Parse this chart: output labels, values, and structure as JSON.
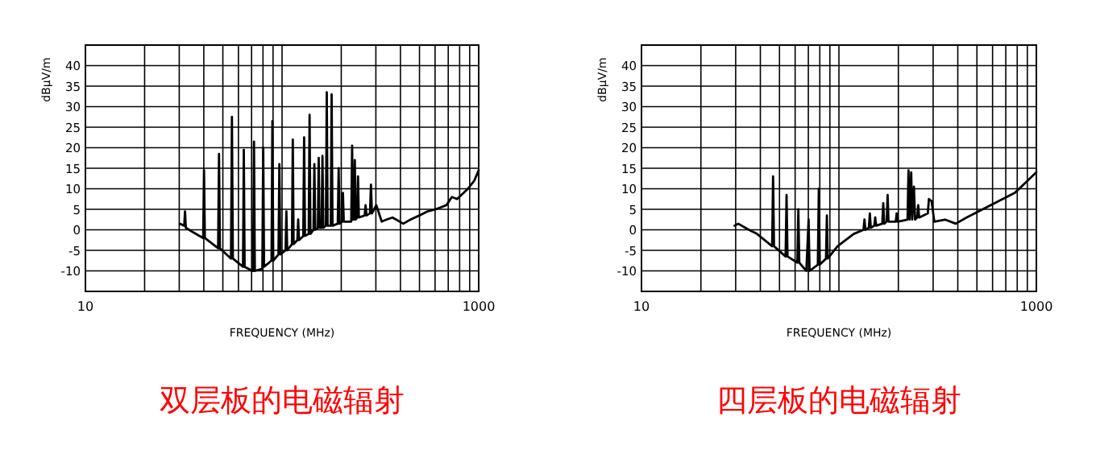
{
  "chart_data": [
    {
      "type": "line",
      "title": "双层板的电磁辐射",
      "xlabel": "FREQUENCY (MHz)",
      "ylabel": "dBμV/m",
      "color": "#000000",
      "log": "x",
      "grid": true,
      "xlim": [
        10,
        1000
      ],
      "ylim": [
        -15,
        45
      ],
      "xticks": [
        {
          "value": 10,
          "label": "10"
        },
        {
          "value": 20,
          "label": null
        },
        {
          "value": 30,
          "label": null
        },
        {
          "value": 40,
          "label": null
        },
        {
          "value": 50,
          "label": null
        },
        {
          "value": 60,
          "label": null
        },
        {
          "value": 70,
          "label": null
        },
        {
          "value": 80,
          "label": null
        },
        {
          "value": 90,
          "label": null
        },
        {
          "value": 100,
          "label": null
        },
        {
          "value": 200,
          "label": null
        },
        {
          "value": 300,
          "label": null
        },
        {
          "value": 400,
          "label": null
        },
        {
          "value": 500,
          "label": null
        },
        {
          "value": 600,
          "label": null
        },
        {
          "value": 700,
          "label": null
        },
        {
          "value": 800,
          "label": null
        },
        {
          "value": 900,
          "label": null
        },
        {
          "value": 1000,
          "label": "1000"
        }
      ],
      "yticks": [
        -10,
        -5,
        0,
        5,
        10,
        15,
        20,
        25,
        30,
        35,
        40
      ],
      "x": [
        30.2,
        31.8,
        32.1,
        32.4,
        35,
        39.7,
        40.1,
        40.5,
        47.3,
        47.8,
        48.3,
        55,
        55.6,
        56.2,
        63.3,
        63.9,
        64.5,
        70.7,
        71.3,
        72,
        72.7,
        79.4,
        80.2,
        81,
        88.4,
        89.3,
        90.2,
        95.9,
        96.9,
        97.9,
        104.2,
        105.2,
        106.2,
        112.3,
        113.4,
        114.5,
        119.6,
        120.8,
        122,
        128.2,
        129.5,
        130.8,
        136.6,
        138,
        139.4,
        144.5,
        146,
        147.5,
        152.1,
        153.6,
        155.1,
        158.9,
        160.5,
        162.1,
        167.1,
        168.8,
        170.5,
        176.9,
        178.7,
        180.5,
        192,
        194,
        196,
        202,
        204,
        206,
        220,
        224.8,
        227.1,
        229.4,
        232,
        234.4,
        236.8,
        241,
        243.4,
        245.8,
        263,
        265.9,
        268.8,
        280,
        283.2,
        286.4,
        301.6,
        321.3,
        340,
        364.5,
        413.5,
        450,
        499.7,
        550,
        603.8,
        684.8,
        730,
        776.9,
        881.4,
        950,
        1000
      ],
      "values": [
        1.5,
        1,
        4.5,
        0.5,
        -0.5,
        -2,
        14.5,
        -2,
        -4.5,
        18.5,
        -4.5,
        -7,
        27.5,
        -7,
        -9,
        19.5,
        -9,
        -10,
        -10,
        21.5,
        -10,
        -9.5,
        20,
        -9,
        -7.5,
        26.5,
        -7.5,
        -6,
        16,
        -6,
        -5,
        4.5,
        -5,
        -3.5,
        22,
        -3.5,
        -2.5,
        2.5,
        -2.5,
        -1.5,
        22.5,
        -1.5,
        -1,
        28,
        -1,
        0,
        16,
        0,
        0.5,
        17.5,
        0.5,
        0.5,
        18,
        0.5,
        1,
        33.5,
        1,
        1,
        33,
        1,
        1.5,
        15,
        1.5,
        2,
        9,
        2,
        2,
        2,
        20.5,
        2.5,
        2.5,
        17,
        2.5,
        3,
        13,
        3,
        3.5,
        6,
        3.5,
        4,
        11,
        4,
        6,
        2,
        2.5,
        3,
        1.5,
        2.5,
        3.5,
        4.5,
        5,
        6,
        8,
        7.5,
        10,
        12,
        14.5
      ]
    },
    {
      "type": "line",
      "title": "四层板的电磁辐射",
      "xlabel": "FREQUENCY (MHz)",
      "ylabel": "dBμV/m",
      "color": "#000000",
      "log": "x",
      "grid": true,
      "xlim": [
        10,
        1000
      ],
      "ylim": [
        -15,
        45
      ],
      "xticks": [
        {
          "value": 10,
          "label": "10"
        },
        {
          "value": 20,
          "label": null
        },
        {
          "value": 30,
          "label": null
        },
        {
          "value": 40,
          "label": null
        },
        {
          "value": 50,
          "label": null
        },
        {
          "value": 60,
          "label": null
        },
        {
          "value": 70,
          "label": null
        },
        {
          "value": 80,
          "label": null
        },
        {
          "value": 90,
          "label": null
        },
        {
          "value": 100,
          "label": null
        },
        {
          "value": 200,
          "label": null
        },
        {
          "value": 300,
          "label": null
        },
        {
          "value": 400,
          "label": null
        },
        {
          "value": 500,
          "label": null
        },
        {
          "value": 600,
          "label": null
        },
        {
          "value": 700,
          "label": null
        },
        {
          "value": 800,
          "label": null
        },
        {
          "value": 900,
          "label": null
        },
        {
          "value": 1000,
          "label": "1000"
        }
      ],
      "yticks": [
        -10,
        -5,
        0,
        5,
        10,
        15,
        20,
        25,
        30,
        35,
        40
      ],
      "x": [
        29.6,
        30.9,
        35,
        38.5,
        45.9,
        46.4,
        46.9,
        53.7,
        54.3,
        54.9,
        61.6,
        62.3,
        63,
        68.4,
        70.2,
        71,
        78.2,
        79.1,
        80,
        86,
        86.9,
        87.8,
        98.4,
        118.8,
        133.2,
        134.7,
        136.2,
        141.8,
        143.4,
        145,
        151,
        152.7,
        154.4,
        165.8,
        167.7,
        169.6,
        174.5,
        176.4,
        178.3,
        194,
        196.1,
        198.2,
        222.6,
        225.1,
        228,
        232.3,
        235,
        239.8,
        243,
        249,
        252,
        255,
        282,
        285.6,
        294.7,
        304.1,
        344.6,
        390.7,
        443,
        534.5,
        644.9,
        778.2,
        1000
      ],
      "values": [
        1,
        1.5,
        0,
        -1,
        -4,
        13,
        -4,
        -6.5,
        8.5,
        -6.5,
        -8,
        5,
        -8,
        -10,
        2.5,
        -10,
        -8.5,
        10,
        -8.5,
        -7,
        3.5,
        -7,
        -4,
        -1,
        0,
        2.5,
        0,
        0.5,
        4,
        0.5,
        1,
        3,
        1,
        1.5,
        6.5,
        1.5,
        2,
        8.5,
        2,
        2,
        4,
        2,
        2.5,
        14.5,
        2.5,
        14,
        2.5,
        10.5,
        2.5,
        3,
        6,
        3,
        4,
        7.5,
        7,
        2,
        2.5,
        1.5,
        3,
        5,
        7,
        9,
        14
      ]
    }
  ]
}
